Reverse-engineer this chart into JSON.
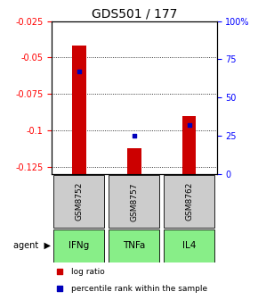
{
  "title": "GDS501 / 177",
  "samples": [
    "GSM8752",
    "GSM8757",
    "GSM8762"
  ],
  "agents": [
    "IFNg",
    "TNFa",
    "IL4"
  ],
  "log_ratios": [
    -0.042,
    -0.112,
    -0.09
  ],
  "percentile_ranks_pct": [
    67,
    25,
    32
  ],
  "ylim_left": [
    -0.13,
    -0.025
  ],
  "ylim_right": [
    0,
    100
  ],
  "yticks_left": [
    -0.125,
    -0.1,
    -0.075,
    -0.05,
    -0.025
  ],
  "yticks_left_labels": [
    "-0.125",
    "-0.1",
    "-0.075",
    "-0.05",
    "-0.025"
  ],
  "yticks_right": [
    0,
    25,
    50,
    75,
    100
  ],
  "yticks_right_labels": [
    "0",
    "25",
    "50",
    "75",
    "100%"
  ],
  "bar_color": "#cc0000",
  "dot_color": "#0000bb",
  "agent_bg_color": "#88ee88",
  "sample_bg_color": "#cccccc",
  "title_fontsize": 10,
  "tick_fontsize": 7,
  "bar_width": 0.25
}
